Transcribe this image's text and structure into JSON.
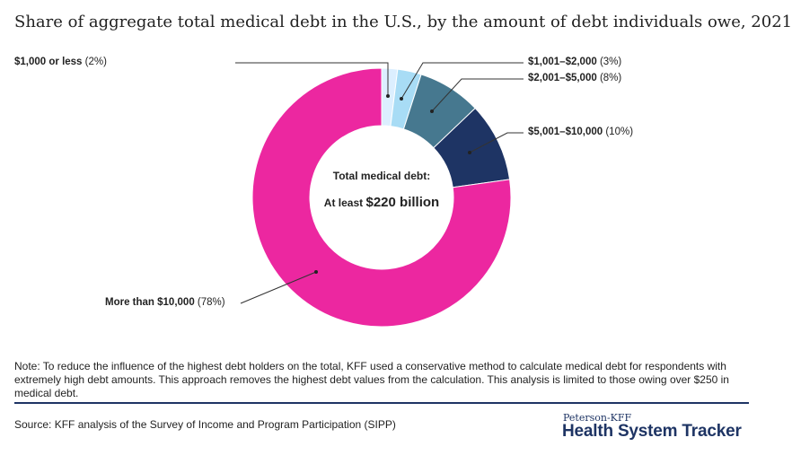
{
  "chart_data": {
    "type": "pie",
    "donut": true,
    "title": "Share of aggregate total medical debt in the U.S., by the amount of debt individuals owe, 2021",
    "slices": [
      {
        "label": "$1,000 or less",
        "value": 2,
        "display": "(2%)",
        "color": "#dcefff"
      },
      {
        "label": "$1,001–$2,000",
        "value": 3,
        "display": "(3%)",
        "color": "#a8dcf5"
      },
      {
        "label": "$2,001–$5,000",
        "value": 8,
        "display": "(8%)",
        "color": "#46788f"
      },
      {
        "label": "$5,001–$10,000",
        "value": 10,
        "display": "(10%)",
        "color": "#1e3464"
      },
      {
        "label": "More than $10,000",
        "value": 78,
        "display": "(78%)",
        "color": "#ec27a0"
      }
    ],
    "center_text": {
      "line1": "Total medical debt:",
      "line2_prefix": "At least",
      "line2_value": "$220 billion"
    }
  },
  "note": "Note: To reduce the influence of the highest debt holders on the total, KFF used a conservative method to calculate medical debt for respondents with extremely high debt amounts. This approach removes the highest debt values from the calculation. This analysis is limited to those owing over $250 in medical debt.",
  "source": "Source: KFF analysis of the Survey of Income and Program Participation (SIPP)",
  "logo": {
    "line1": "Peterson-KFF",
    "line2": "Health System Tracker"
  }
}
